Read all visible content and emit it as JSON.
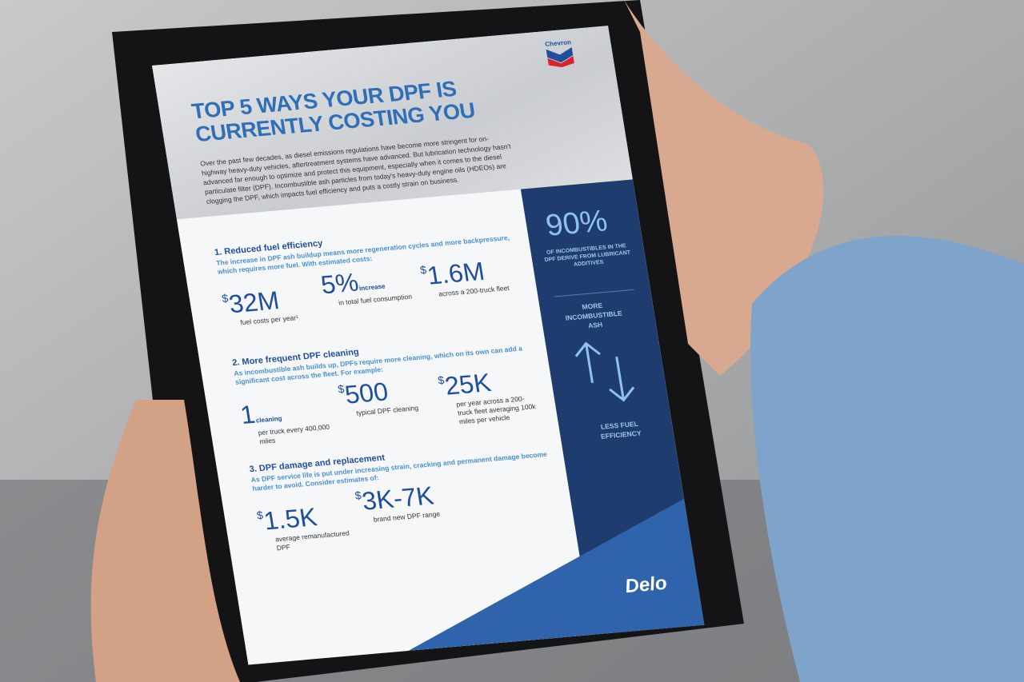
{
  "brand": "Chevron",
  "title": [
    "TOP 5 WAYS YOUR DPF IS",
    "CURRENTLY COSTING YOU"
  ],
  "intro": "Over the past few decades, as diesel emissions regulations have become more stringent for on-highway heavy-duty vehicles, aftertreatment systems have advanced. But lubrication technology hasn't advanced far enough to optimize and protect this equipment, especially when it comes to the diesel particulate filter (DPF). Incombustible ash particles from today's heavy-duty engine oils (HDEOs) are clogging the DPF, which impacts fuel efficiency and puts a costly strain on business.",
  "sections": [
    {
      "heading": "1. Reduced fuel efficiency",
      "text": "The increase in DPF ash buildup means more regeneration cycles and more backpressure, which requires more fuel. With estimated costs:",
      "stats": [
        {
          "prefix": "$",
          "amount": "32M",
          "caption": "fuel costs per year¹"
        },
        {
          "amount": "5%",
          "suffix": "increase",
          "caption": "in total fuel consumption"
        },
        {
          "prefix": "$",
          "amount": "1.6M",
          "caption": "across a 200-truck fleet"
        }
      ]
    },
    {
      "heading": "2. More frequent DPF cleaning",
      "text": "As incombustible ash builds up, DPFs require more cleaning, which on its own can add a significant cost across the fleet. For example:",
      "stats": [
        {
          "amount": "1",
          "suffix": "cleaning",
          "caption": "per truck every 400,000 miles"
        },
        {
          "prefix": "$",
          "amount": "500",
          "caption": "typical DPF cleaning"
        },
        {
          "prefix": "$",
          "amount": "25K",
          "caption": "per year across a 200-truck fleet averaging 100k miles per vehicle"
        }
      ]
    },
    {
      "heading": "3. DPF damage and replacement",
      "text": "As DPF service life is put under increasing strain, cracking and permanent damage become harder to avoid. Consider estimates of:",
      "stats": [
        {
          "prefix": "$",
          "amount": "1.5K",
          "caption": "average remanufactured DPF"
        },
        {
          "prefix": "$",
          "amount": "3K-7K",
          "caption": "brand new DPF range"
        }
      ]
    }
  ],
  "sidebar": {
    "stat": "90%",
    "text": "OF INCOMBUSTIBLES IN THE DPF DERIVE FROM LUBRICANT ADDITIVES",
    "up": "MORE INCOMBUSTIBLE ASH",
    "down": "LESS FUEL EFFICIENCY"
  },
  "footer_brand": "Delo"
}
